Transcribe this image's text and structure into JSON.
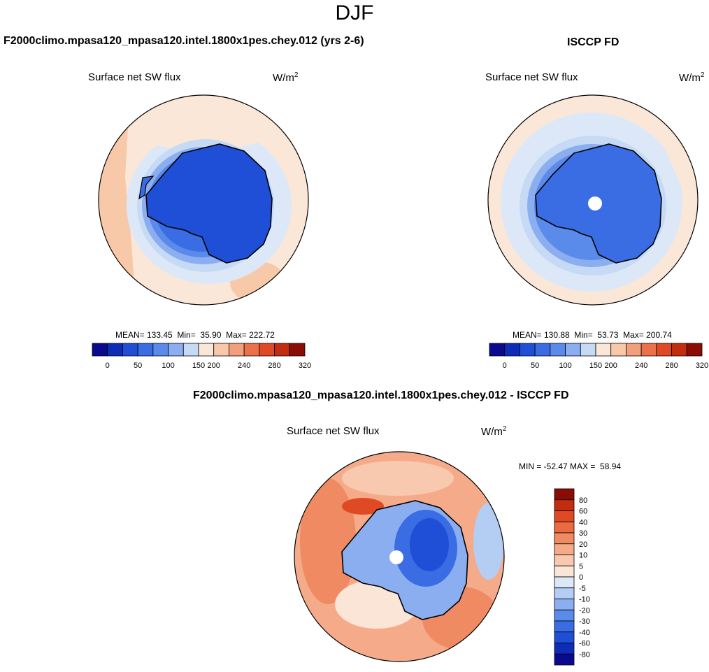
{
  "season": "DJF",
  "panels": [
    {
      "title": "F2000climo.mpasa120_mpasa120.intel.1800x1pes.chey.012 (yrs 2-6)",
      "variable": "Surface net SW flux",
      "units_base": "W/m",
      "units_exp": "2",
      "stats": "MEAN= 133.45  Min=  35.90  Max= 222.72"
    },
    {
      "title": "ISCCP FD",
      "variable": "Surface net SW flux",
      "units_base": "W/m",
      "units_exp": "2",
      "stats": "MEAN= 130.88  Min=  53.73  Max= 200.74"
    }
  ],
  "diff": {
    "title": "F2000climo.mpasa120_mpasa120.intel.1800x1pes.chey.012 - ISCCP FD",
    "variable": "Surface net SW flux",
    "units_base": "W/m",
    "units_exp": "2",
    "stats": "MIN = -52.47 MAX =  58.94"
  },
  "colorbar_top": {
    "colors": [
      "#0a0a8f",
      "#0d2cb8",
      "#1f4fd6",
      "#3a6de3",
      "#5a8aea",
      "#8aaef0",
      "#c6daf6",
      "#fbe7d8",
      "#f8c9a9",
      "#f2a07c",
      "#ec7149",
      "#df4a24",
      "#c22d10",
      "#8a0c05"
    ],
    "labels": [
      "0",
      "50",
      "100",
      "150",
      "200",
      "240",
      "280",
      "320"
    ]
  },
  "colorbar_diff": {
    "colors": [
      "#8a0c05",
      "#c22d10",
      "#df4a24",
      "#ec6a40",
      "#f08a63",
      "#f5ab8a",
      "#f8c9ae",
      "#fbe5d6",
      "#dce8f8",
      "#b3cdf3",
      "#8aaef0",
      "#5a8aea",
      "#3a6de3",
      "#1f4fd6",
      "#0d2cb8",
      "#0a0a8f"
    ],
    "labels": [
      "80",
      "60",
      "40",
      "30",
      "20",
      "10",
      "5",
      "0",
      "-5",
      "-10",
      "-20",
      "-30",
      "-40",
      "-60",
      "-80"
    ]
  }
}
